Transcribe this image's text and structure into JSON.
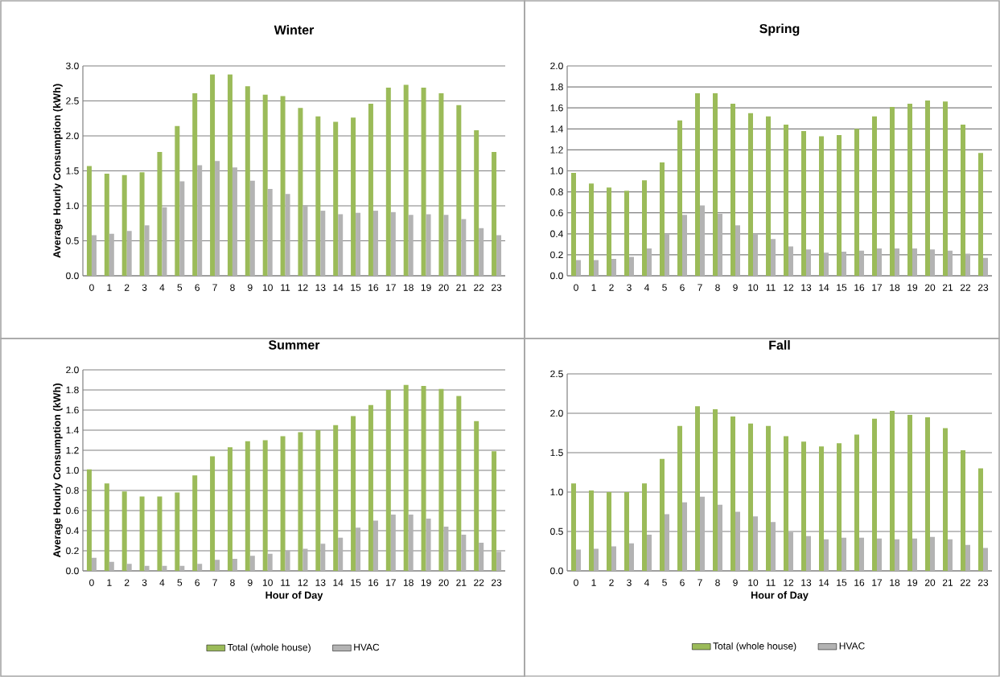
{
  "chart_data": [
    {
      "type": "bar",
      "title": "Winter",
      "ylabel": "Average Hourly Consumption (kWh)",
      "categories": [
        "0",
        "1",
        "2",
        "3",
        "4",
        "5",
        "6",
        "7",
        "8",
        "9",
        "10",
        "11",
        "12",
        "13",
        "14",
        "15",
        "16",
        "17",
        "18",
        "19",
        "20",
        "21",
        "22",
        "23"
      ],
      "series": [
        {
          "color": "#9bbb59",
          "values": [
            1.57,
            1.46,
            1.44,
            1.48,
            1.77,
            2.14,
            2.61,
            2.88,
            2.88,
            2.71,
            2.59,
            2.57,
            2.4,
            2.28,
            2.2,
            2.26,
            2.46,
            2.69,
            2.73,
            2.69,
            2.61,
            2.44,
            2.08,
            1.77
          ]
        },
        {
          "color": "#b3b3b3",
          "values": [
            0.58,
            0.6,
            0.64,
            0.72,
            0.98,
            1.35,
            1.58,
            1.64,
            1.55,
            1.36,
            1.24,
            1.17,
            1.01,
            0.93,
            0.88,
            0.9,
            0.93,
            0.91,
            0.87,
            0.88,
            0.87,
            0.81,
            0.68,
            0.58
          ]
        }
      ],
      "ylim": [
        0,
        3
      ],
      "yticks": [
        {
          "value": 0,
          "label": "0.0"
        },
        {
          "value": 0.5,
          "label": "0.5"
        },
        {
          "value": 1,
          "label": "1.0"
        },
        {
          "value": 1.5,
          "label": "1.5"
        },
        {
          "value": 2,
          "label": "2.0"
        },
        {
          "value": 2.5,
          "label": "2.5"
        },
        {
          "value": 3,
          "label": "3.0"
        }
      ],
      "grid": "y"
    },
    {
      "type": "bar",
      "title": "Spring",
      "categories": [
        "0",
        "1",
        "2",
        "3",
        "4",
        "5",
        "6",
        "7",
        "8",
        "9",
        "10",
        "11",
        "12",
        "13",
        "14",
        "15",
        "16",
        "17",
        "18",
        "19",
        "20",
        "21",
        "22",
        "23"
      ],
      "series": [
        {
          "color": "#9bbb59",
          "values": [
            0.98,
            0.88,
            0.84,
            0.81,
            0.91,
            1.08,
            1.48,
            1.74,
            1.74,
            1.64,
            1.55,
            1.52,
            1.44,
            1.38,
            1.33,
            1.34,
            1.4,
            1.52,
            1.61,
            1.64,
            1.67,
            1.66,
            1.44,
            1.17
          ]
        },
        {
          "color": "#b3b3b3",
          "values": [
            0.15,
            0.15,
            0.16,
            0.18,
            0.26,
            0.4,
            0.58,
            0.67,
            0.59,
            0.48,
            0.4,
            0.35,
            0.28,
            0.25,
            0.22,
            0.23,
            0.24,
            0.26,
            0.26,
            0.26,
            0.25,
            0.24,
            0.21,
            0.17
          ]
        }
      ],
      "ylim": [
        0,
        2
      ],
      "yticks": [
        {
          "value": 0,
          "label": "0.0"
        },
        {
          "value": 0.2,
          "label": "0.2"
        },
        {
          "value": 0.4,
          "label": "0.4"
        },
        {
          "value": 0.6,
          "label": "0.6"
        },
        {
          "value": 0.8,
          "label": "0.8"
        },
        {
          "value": 1,
          "label": "1.0"
        },
        {
          "value": 1.2,
          "label": "1.2"
        },
        {
          "value": 1.4,
          "label": "1.4"
        },
        {
          "value": 1.6,
          "label": "1.6"
        },
        {
          "value": 1.8,
          "label": "1.8"
        },
        {
          "value": 2,
          "label": "2.0"
        }
      ],
      "grid": "y"
    },
    {
      "type": "bar",
      "title": "Summer",
      "xlabel": "Hour of Day",
      "ylabel": "Average Hourly Consumption (kWh)",
      "categories": [
        "0",
        "1",
        "2",
        "3",
        "4",
        "5",
        "6",
        "7",
        "8",
        "9",
        "10",
        "11",
        "12",
        "13",
        "14",
        "15",
        "16",
        "17",
        "18",
        "19",
        "20",
        "21",
        "22",
        "23"
      ],
      "series": [
        {
          "name": "Total (whole house)",
          "color": "#9bbb59",
          "values": [
            1.01,
            0.87,
            0.79,
            0.74,
            0.74,
            0.78,
            0.95,
            1.14,
            1.23,
            1.29,
            1.3,
            1.34,
            1.38,
            1.4,
            1.45,
            1.54,
            1.65,
            1.8,
            1.85,
            1.84,
            1.81,
            1.74,
            1.49,
            1.19
          ]
        },
        {
          "name": "HVAC",
          "color": "#b3b3b3",
          "values": [
            0.13,
            0.09,
            0.07,
            0.05,
            0.05,
            0.05,
            0.07,
            0.11,
            0.12,
            0.15,
            0.17,
            0.2,
            0.22,
            0.27,
            0.33,
            0.43,
            0.5,
            0.56,
            0.56,
            0.52,
            0.44,
            0.36,
            0.28,
            0.19
          ]
        }
      ],
      "ylim": [
        0,
        2
      ],
      "yticks": [
        {
          "value": 0,
          "label": "0.0"
        },
        {
          "value": 0.2,
          "label": "0.2"
        },
        {
          "value": 0.4,
          "label": "0.4"
        },
        {
          "value": 0.6,
          "label": "0.6"
        },
        {
          "value": 0.8,
          "label": "0.8"
        },
        {
          "value": 1,
          "label": "1.0"
        },
        {
          "value": 1.2,
          "label": "1.2"
        },
        {
          "value": 1.4,
          "label": "1.4"
        },
        {
          "value": 1.6,
          "label": "1.6"
        },
        {
          "value": 1.8,
          "label": "1.8"
        },
        {
          "value": 2,
          "label": "2.0"
        }
      ],
      "grid": "y",
      "legend": "bottom"
    },
    {
      "type": "bar",
      "title": "Fall",
      "xlabel": "Hour of Day",
      "categories": [
        "0",
        "1",
        "2",
        "3",
        "4",
        "5",
        "6",
        "7",
        "8",
        "9",
        "10",
        "11",
        "12",
        "13",
        "14",
        "15",
        "16",
        "17",
        "18",
        "19",
        "20",
        "21",
        "22",
        "23"
      ],
      "series": [
        {
          "name": "Total (whole house)",
          "color": "#9bbb59",
          "values": [
            1.11,
            1.02,
            1.0,
            1.0,
            1.11,
            1.42,
            1.84,
            2.09,
            2.05,
            1.96,
            1.87,
            1.84,
            1.71,
            1.64,
            1.58,
            1.62,
            1.73,
            1.93,
            2.03,
            1.98,
            1.95,
            1.81,
            1.53,
            1.3
          ]
        },
        {
          "name": "HVAC",
          "color": "#b3b3b3",
          "values": [
            0.27,
            0.28,
            0.31,
            0.35,
            0.46,
            0.72,
            0.87,
            0.94,
            0.84,
            0.75,
            0.69,
            0.62,
            0.49,
            0.44,
            0.4,
            0.42,
            0.42,
            0.41,
            0.4,
            0.41,
            0.43,
            0.4,
            0.33,
            0.29
          ]
        }
      ],
      "ylim": [
        0,
        2.5
      ],
      "yticks": [
        {
          "value": 0,
          "label": "0.0"
        },
        {
          "value": 0.5,
          "label": "0.5"
        },
        {
          "value": 1,
          "label": "1.0"
        },
        {
          "value": 1.5,
          "label": "1.5"
        },
        {
          "value": 2,
          "label": "2.0"
        },
        {
          "value": 2.5,
          "label": "2.5"
        }
      ],
      "grid": "y",
      "legend": "bottom"
    }
  ]
}
